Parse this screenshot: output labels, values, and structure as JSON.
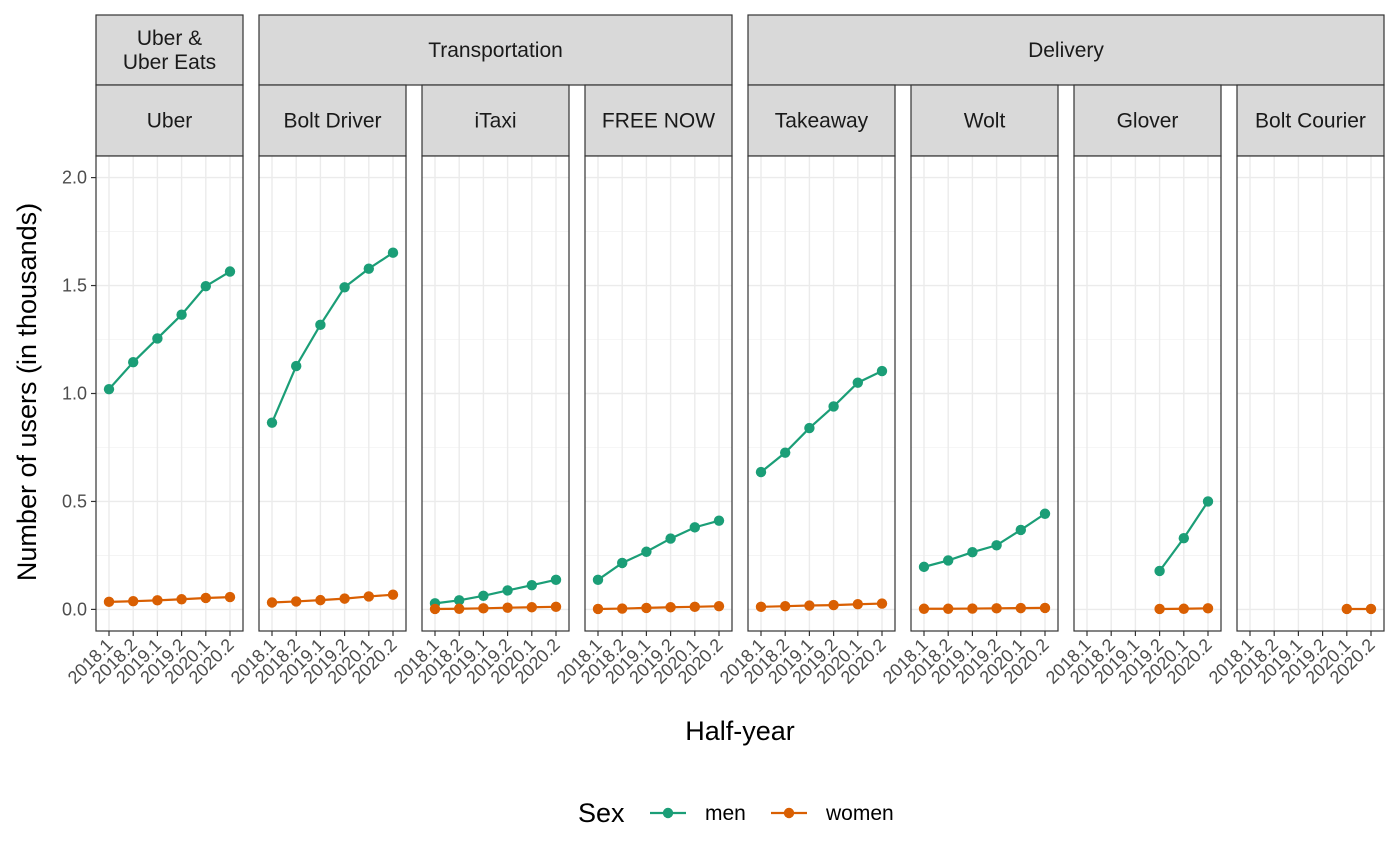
{
  "chart_data": {
    "type": "line",
    "x": [
      "2018.1",
      "2018.2",
      "2019.1",
      "2019.2",
      "2020.1",
      "2020.2"
    ],
    "ylabel": "Number of users (in thousands)",
    "xlabel": "Half-year",
    "ylim": [
      -0.1,
      2.1
    ],
    "yticks": [
      "0.0",
      "0.5",
      "1.0",
      "1.5",
      "2.0"
    ],
    "grid": true,
    "legend": {
      "title": "Sex",
      "position": "bottom",
      "entries": [
        {
          "name": "men",
          "color": "#1b9e77"
        },
        {
          "name": "women",
          "color": "#d95f02"
        }
      ]
    },
    "groups": [
      {
        "name": "Uber &\nUber Eats",
        "lines": [
          "Uber &",
          "Uber Eats"
        ],
        "panels": [
          0
        ]
      },
      {
        "name": "Transportation",
        "lines": [
          "Transportation"
        ],
        "panels": [
          1,
          2,
          3
        ]
      },
      {
        "name": "Delivery",
        "lines": [
          "Delivery"
        ],
        "panels": [
          4,
          5,
          6,
          7
        ]
      }
    ],
    "panels": [
      {
        "name": "Uber",
        "series": [
          {
            "name": "men",
            "values": [
              1.02,
              1.145,
              1.255,
              1.365,
              1.497,
              1.565
            ]
          },
          {
            "name": "women",
            "values": [
              0.035,
              0.038,
              0.042,
              0.047,
              0.053,
              0.057
            ]
          }
        ]
      },
      {
        "name": "Bolt Driver",
        "series": [
          {
            "name": "men",
            "values": [
              0.865,
              1.127,
              1.318,
              1.492,
              1.578,
              1.652
            ]
          },
          {
            "name": "women",
            "values": [
              0.032,
              0.037,
              0.043,
              0.05,
              0.06,
              0.068
            ]
          }
        ]
      },
      {
        "name": "iTaxi",
        "series": [
          {
            "name": "men",
            "values": [
              0.028,
              0.042,
              0.063,
              0.088,
              0.112,
              0.137
            ]
          },
          {
            "name": "women",
            "values": [
              0.002,
              0.003,
              0.005,
              0.008,
              0.01,
              0.012
            ]
          }
        ]
      },
      {
        "name": "FREE NOW",
        "series": [
          {
            "name": "men",
            "values": [
              0.137,
              0.215,
              0.267,
              0.328,
              0.38,
              0.411
            ]
          },
          {
            "name": "women",
            "values": [
              0.002,
              0.004,
              0.007,
              0.01,
              0.012,
              0.015
            ]
          }
        ]
      },
      {
        "name": "Takeaway",
        "series": [
          {
            "name": "men",
            "values": [
              0.636,
              0.726,
              0.84,
              0.94,
              1.05,
              1.104
            ]
          },
          {
            "name": "women",
            "values": [
              0.012,
              0.015,
              0.018,
              0.02,
              0.024,
              0.027
            ]
          }
        ]
      },
      {
        "name": "Wolt",
        "series": [
          {
            "name": "men",
            "values": [
              0.197,
              0.227,
              0.265,
              0.297,
              0.368,
              0.443
            ]
          },
          {
            "name": "women",
            "values": [
              0.003,
              0.003,
              0.004,
              0.005,
              0.006,
              0.007
            ]
          }
        ]
      },
      {
        "name": "Glover",
        "series": [
          {
            "name": "men",
            "values": [
              null,
              null,
              null,
              0.178,
              0.33,
              0.5
            ]
          },
          {
            "name": "women",
            "values": [
              null,
              null,
              null,
              0.002,
              0.003,
              0.005
            ]
          }
        ]
      },
      {
        "name": "Bolt Courier",
        "series": [
          {
            "name": "men",
            "values": [
              null,
              null,
              null,
              null,
              null,
              null
            ]
          },
          {
            "name": "women",
            "values": [
              null,
              null,
              null,
              null,
              0.002,
              0.002
            ]
          }
        ]
      }
    ]
  }
}
